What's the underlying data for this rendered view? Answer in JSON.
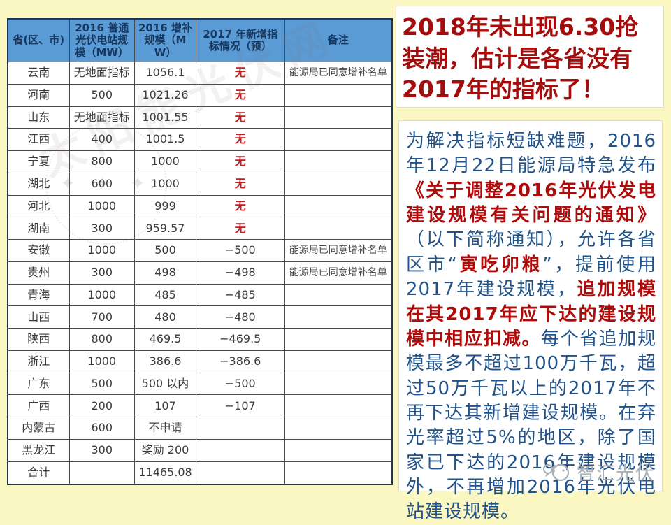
{
  "colors": {
    "page_background": "#FBF7C3",
    "table_header_background": "#5B9BD5",
    "table_header_text": "#17375E",
    "indicator_none_red": "#C02020",
    "callout_red": "#A50D0D",
    "article_blue": "#21538A",
    "article_red": "#B00B0B",
    "logo_gray": "#A9AFB6"
  },
  "table": {
    "headers": [
      "省(区、市)",
      "2016 普通光伏电站规模（MW）",
      "2016 增补规模（MW）",
      "2017 年新增指标情况（预）",
      "备注"
    ],
    "rows": [
      {
        "province": "云南",
        "scale_2016": "无地面指标",
        "supplement_2016": "1056.1",
        "indicator_2017": "无",
        "indicator_red": true,
        "remark": "能源局已同意增补名单"
      },
      {
        "province": "河南",
        "scale_2016": "500",
        "supplement_2016": "1021.26",
        "indicator_2017": "无",
        "indicator_red": true,
        "remark": ""
      },
      {
        "province": "山东",
        "scale_2016": "无地面指标",
        "supplement_2016": "1001.55",
        "indicator_2017": "无",
        "indicator_red": true,
        "remark": ""
      },
      {
        "province": "江西",
        "scale_2016": "400",
        "supplement_2016": "1001.5",
        "indicator_2017": "无",
        "indicator_red": true,
        "remark": ""
      },
      {
        "province": "宁夏",
        "scale_2016": "800",
        "supplement_2016": "1000",
        "indicator_2017": "无",
        "indicator_red": true,
        "remark": ""
      },
      {
        "province": "湖北",
        "scale_2016": "600",
        "supplement_2016": "1000",
        "indicator_2017": "无",
        "indicator_red": true,
        "remark": ""
      },
      {
        "province": "河北",
        "scale_2016": "1000",
        "supplement_2016": "999",
        "indicator_2017": "无",
        "indicator_red": true,
        "remark": ""
      },
      {
        "province": "湖南",
        "scale_2016": "300",
        "supplement_2016": "959.57",
        "indicator_2017": "无",
        "indicator_red": true,
        "remark": ""
      },
      {
        "province": "安徽",
        "scale_2016": "1000",
        "supplement_2016": "500",
        "indicator_2017": "−500",
        "indicator_red": false,
        "remark": "能源局已同意增补名单"
      },
      {
        "province": "贵州",
        "scale_2016": "300",
        "supplement_2016": "498",
        "indicator_2017": "−498",
        "indicator_red": false,
        "remark": "能源局已同意增补名单"
      },
      {
        "province": "青海",
        "scale_2016": "1000",
        "supplement_2016": "485",
        "indicator_2017": "−485",
        "indicator_red": false,
        "remark": ""
      },
      {
        "province": "山西",
        "scale_2016": "700",
        "supplement_2016": "480",
        "indicator_2017": "−480",
        "indicator_red": false,
        "remark": ""
      },
      {
        "province": "陕西",
        "scale_2016": "800",
        "supplement_2016": "469.5",
        "indicator_2017": "−469.5",
        "indicator_red": false,
        "remark": ""
      },
      {
        "province": "浙江",
        "scale_2016": "1000",
        "supplement_2016": "386.6",
        "indicator_2017": "−386.6",
        "indicator_red": false,
        "remark": ""
      },
      {
        "province": "广东",
        "scale_2016": "500",
        "supplement_2016": "500 以内",
        "indicator_2017": "−500",
        "indicator_red": false,
        "remark": ""
      },
      {
        "province": "广西",
        "scale_2016": "200",
        "supplement_2016": "107",
        "indicator_2017": "−107",
        "indicator_red": false,
        "remark": ""
      },
      {
        "province": "内蒙古",
        "scale_2016": "600",
        "supplement_2016": "不申请",
        "indicator_2017": "",
        "indicator_red": false,
        "remark": ""
      },
      {
        "province": "黑龙江",
        "scale_2016": "300",
        "supplement_2016": "奖励 200",
        "indicator_2017": "",
        "indicator_red": false,
        "remark": ""
      },
      {
        "province": "合计",
        "scale_2016": "",
        "supplement_2016": "11465.08",
        "indicator_2017": "",
        "indicator_red": false,
        "remark": ""
      }
    ]
  },
  "watermark": {
    "diagonal_text": "太阳能光伏网",
    "ring_text": "✦ ✦ ✦"
  },
  "callout": {
    "text": "2018年未出现6.30抢装潮，估计是各省没有2017年的指标了！"
  },
  "article": {
    "segments": [
      {
        "style": "blue",
        "text": "为解决指标短缺难题，2016年12月22日能源局特急发布"
      },
      {
        "style": "red",
        "text": "《关于调整2016年光伏发电建设规模有关问题的通知》"
      },
      {
        "style": "blue",
        "text": "（以下简称通知），允许各省区市“"
      },
      {
        "style": "red",
        "text": "寅吃卯粮"
      },
      {
        "style": "blue",
        "text": "”，提前使用2017年建设规模，"
      },
      {
        "style": "red",
        "text": "追加规模在其2017年应下达的建设规模中相应扣减。"
      },
      {
        "style": "blue",
        "text": "每个省追加规模最多不超过100万千瓦，超过50万千瓦以上的2017年不再下达其新增建设规模。在弃光率超过5%的地区，除了国家已下达的2016年建设规模外，不再增加2016年光伏电站建设规模。"
      }
    ]
  },
  "logo": {
    "label": "智汇光伏"
  }
}
